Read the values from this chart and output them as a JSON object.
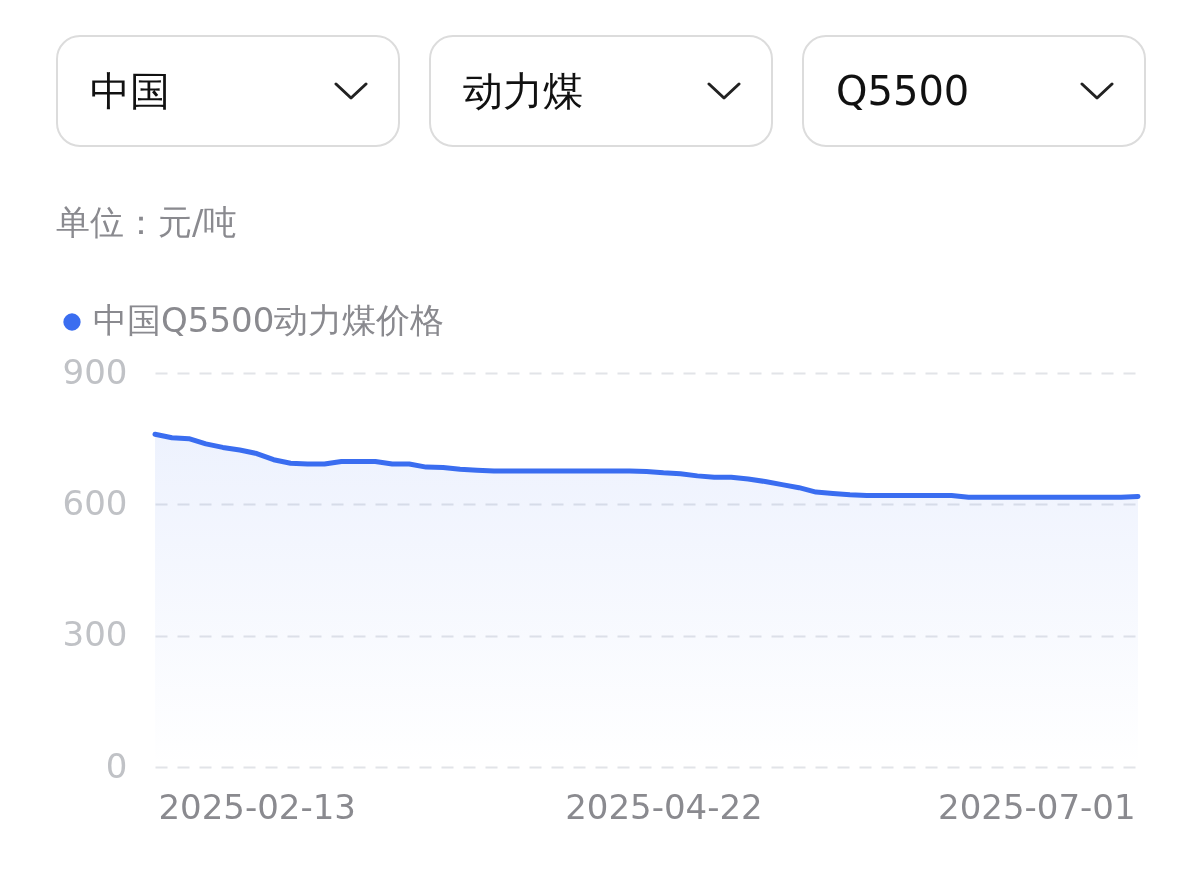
{
  "chart_data": {
    "type": "area",
    "ylabel": "单位：元/吨",
    "annotations": [
      "中国",
      "动力煤",
      "Q5500"
    ],
    "categories": [
      null,
      null,
      null,
      null,
      null,
      null,
      "2025-02-13",
      null,
      null,
      null,
      null,
      null,
      null,
      null,
      null,
      null,
      null,
      null,
      null,
      null,
      null,
      null,
      null,
      null,
      null,
      null,
      null,
      null,
      null,
      null,
      "2025-04-22",
      null,
      null,
      null,
      null,
      null,
      null,
      null,
      null,
      null,
      null,
      null,
      null,
      null,
      null,
      null,
      null,
      null,
      null,
      null,
      null,
      null,
      "2025-07-01",
      null,
      null,
      null,
      null,
      null,
      null
    ],
    "series": [
      {
        "name": "中国Q5500动力煤价格",
        "color": "#3a6df0",
        "values": [
          760,
          752,
          750,
          738,
          730,
          724,
          716,
          702,
          694,
          692,
          692,
          698,
          698,
          698,
          692,
          692,
          685,
          684,
          680,
          678,
          676,
          676,
          676,
          676,
          676,
          676,
          676,
          676,
          676,
          675,
          672,
          670,
          665,
          662,
          662,
          658,
          652,
          645,
          638,
          628,
          625,
          622,
          620,
          620,
          620,
          620,
          620,
          620,
          616,
          616,
          616,
          616,
          616,
          616,
          616,
          616,
          616,
          616,
          618
        ]
      }
    ],
    "ylim": [
      0,
      900
    ],
    "yticks": [
      0,
      300,
      600,
      900
    ],
    "grid": "y",
    "legend": "top left"
  }
}
